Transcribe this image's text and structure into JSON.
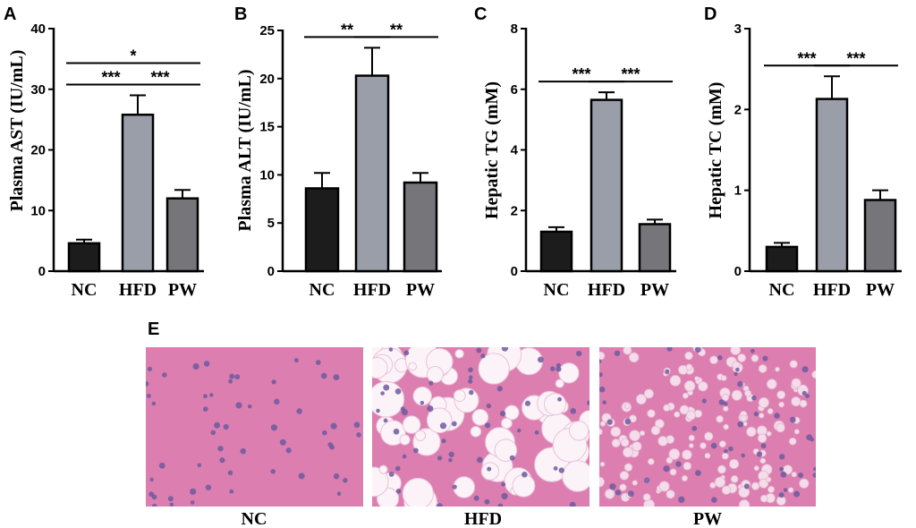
{
  "chart_data": [
    {
      "panel": "A",
      "type": "bar",
      "ylabel": "Plasma AST (IU/mL)",
      "categories": [
        "NC",
        "HFD",
        "PW"
      ],
      "values": [
        4.6,
        25.8,
        12.0
      ],
      "errors": [
        0.6,
        3.2,
        1.4
      ],
      "ylim": [
        0,
        40
      ],
      "yticks": [
        0,
        10,
        20,
        30,
        40
      ],
      "bar_colors": [
        "#1c1c1c",
        "#9a9ea9",
        "#76767a"
      ],
      "significance": [
        {
          "from": 0,
          "to": 1,
          "label": "***",
          "level": 1
        },
        {
          "from": 1,
          "to": 2,
          "label": "***",
          "level": 1
        },
        {
          "from": 0,
          "to": 2,
          "label": "*",
          "level": 2
        }
      ]
    },
    {
      "panel": "B",
      "type": "bar",
      "ylabel": "Plasma ALT (IU/mL)",
      "categories": [
        "NC",
        "HFD",
        "PW"
      ],
      "values": [
        8.6,
        20.3,
        9.2
      ],
      "errors": [
        1.6,
        2.9,
        1.0
      ],
      "ylim": [
        0,
        25
      ],
      "yticks": [
        0,
        5,
        10,
        15,
        20,
        25
      ],
      "bar_colors": [
        "#1c1c1c",
        "#9a9ea9",
        "#76767a"
      ],
      "significance": [
        {
          "from": 0,
          "to": 1,
          "label": "**",
          "level": 1
        },
        {
          "from": 1,
          "to": 2,
          "label": "**",
          "level": 1
        }
      ]
    },
    {
      "panel": "C",
      "type": "bar",
      "ylabel": "Hepatic TG (mM)",
      "categories": [
        "NC",
        "HFD",
        "PW"
      ],
      "values": [
        1.3,
        5.65,
        1.55
      ],
      "errors": [
        0.15,
        0.25,
        0.15
      ],
      "ylim": [
        0,
        8
      ],
      "yticks": [
        0,
        2,
        4,
        6,
        8
      ],
      "bar_colors": [
        "#1c1c1c",
        "#9a9ea9",
        "#76767a"
      ],
      "significance": [
        {
          "from": 0,
          "to": 1,
          "label": "***",
          "level": 1
        },
        {
          "from": 1,
          "to": 2,
          "label": "***",
          "level": 1
        }
      ]
    },
    {
      "panel": "D",
      "type": "bar",
      "ylabel": "Hepatic TC (mM)",
      "categories": [
        "NC",
        "HFD",
        "PW"
      ],
      "values": [
        0.3,
        2.13,
        0.88
      ],
      "errors": [
        0.05,
        0.28,
        0.12
      ],
      "ylim": [
        0,
        3
      ],
      "yticks": [
        0,
        1,
        2,
        3
      ],
      "bar_colors": [
        "#1c1c1c",
        "#9a9ea9",
        "#76767a"
      ],
      "significance": [
        {
          "from": 0,
          "to": 1,
          "label": "***",
          "level": 1
        },
        {
          "from": 1,
          "to": 2,
          "label": "***",
          "level": 1
        }
      ]
    }
  ],
  "histology": {
    "panel": "E",
    "images": [
      {
        "label": "NC",
        "description_icon": "liver-section-normal"
      },
      {
        "label": "HFD",
        "description_icon": "liver-section-steatosis-large-droplets"
      },
      {
        "label": "PW",
        "description_icon": "liver-section-steatosis-small-droplets"
      }
    ],
    "colors": {
      "tissue": "#dc7fb0",
      "nuclei": "#6d5aa0",
      "lipid": "#fbf3f8"
    }
  }
}
